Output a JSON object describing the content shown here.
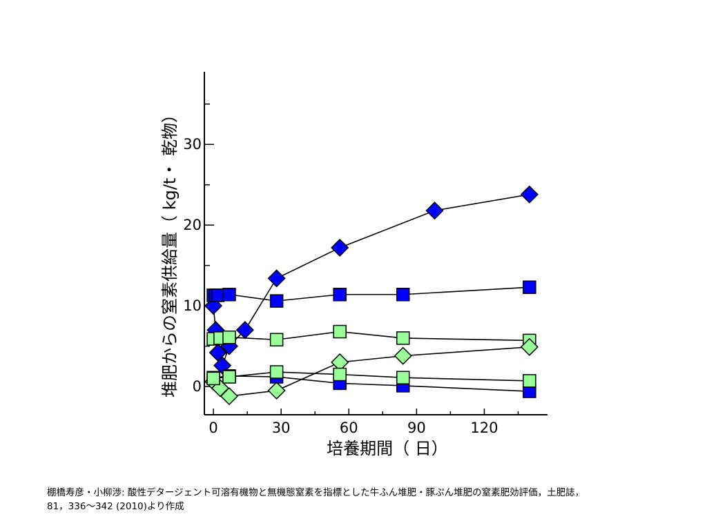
{
  "chart_data": {
    "type": "scatter",
    "title": "",
    "xlabel": "培養期間（ 日）",
    "ylabel": "堆肥からの窒素供給量（ kg/t・ 乾物）",
    "xlim": [
      -4,
      148
    ],
    "ylim": [
      -3.5,
      39
    ],
    "xticks": [
      0,
      30,
      60,
      90,
      120
    ],
    "yticks": [
      0,
      10,
      20,
      30
    ],
    "grid": false,
    "legend": "none",
    "series": [
      {
        "marker": "diamond",
        "color": "#0000ff",
        "x": [
          0,
          1,
          2,
          4,
          7,
          14,
          28,
          56,
          98,
          140
        ],
        "y": [
          10.0,
          7.0,
          4.2,
          2.6,
          5.0,
          7.0,
          13.4,
          17.2,
          21.8,
          23.8
        ]
      },
      {
        "marker": "square",
        "color": "#0000ff",
        "x": [
          0,
          1,
          2,
          7,
          28,
          56,
          84,
          140
        ],
        "y": [
          11.3,
          11.3,
          11.3,
          11.4,
          10.6,
          11.4,
          11.4,
          12.3
        ]
      },
      {
        "marker": "square",
        "color": "#99ff99",
        "x": [
          0,
          3,
          7,
          28,
          56,
          84,
          140
        ],
        "y": [
          5.9,
          6.0,
          6.1,
          5.8,
          6.8,
          6.0,
          5.7
        ]
      },
      {
        "marker": "diamond",
        "color": "#99ff99",
        "x": [
          0,
          3,
          7,
          28,
          56,
          84,
          140
        ],
        "y": [
          0.6,
          -0.2,
          -1.2,
          -0.5,
          3.0,
          3.8,
          4.9
        ]
      },
      {
        "marker": "square",
        "color": "#0000ff",
        "x": [
          0,
          7,
          28,
          56,
          84,
          140
        ],
        "y": [
          1.1,
          1.3,
          1.2,
          0.4,
          0.1,
          -0.6
        ]
      },
      {
        "marker": "square",
        "color": "#99ff99",
        "x": [
          0,
          7,
          28,
          56,
          84,
          140
        ],
        "y": [
          1.0,
          1.2,
          1.8,
          1.5,
          1.1,
          0.7
        ]
      }
    ]
  },
  "caption": {
    "line1": "棚橋寿彦・小柳渉: 酸性デタージェント可溶有機物と無機態窒素を指標とした牛ふん堆肥・豚ぷん堆肥の窒素肥効評価，土肥誌，",
    "line2": "81，336～342 (2010)より作成"
  }
}
